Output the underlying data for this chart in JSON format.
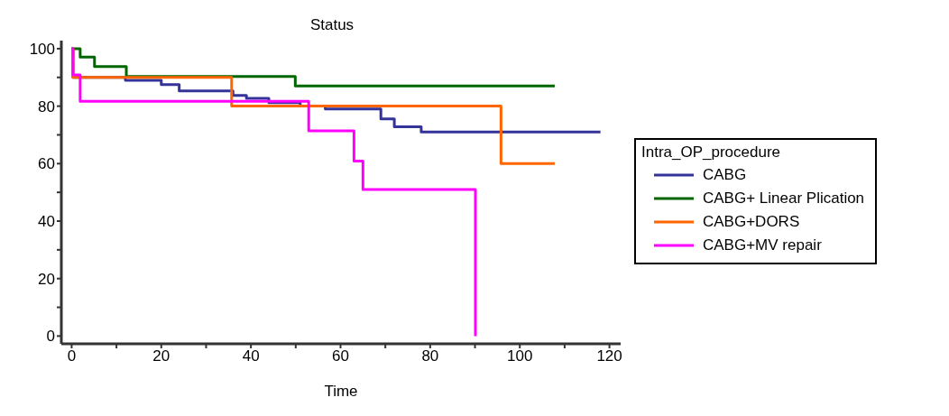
{
  "chart_data": {
    "type": "step",
    "title": "Status",
    "xlabel": "Time",
    "legend_title": "Intra_OP_procedure",
    "legend": "right",
    "grid": false,
    "xlim": [
      -2.3,
      122.5
    ],
    "xticks": [
      0,
      {
        "value": 10,
        "label": null
      },
      20,
      {
        "value": 30,
        "label": null
      },
      40,
      {
        "value": 50,
        "label": null
      },
      60,
      {
        "value": 70,
        "label": null
      },
      80,
      {
        "value": 90,
        "label": null
      },
      100,
      {
        "value": 110,
        "label": null
      },
      120
    ],
    "ylim": [
      -2.7,
      102.8
    ],
    "yticks": [
      0,
      {
        "value": 10,
        "label": null
      },
      20,
      {
        "value": 30,
        "label": null
      },
      40,
      {
        "value": 50,
        "label": null
      },
      60,
      {
        "value": 70,
        "label": null
      },
      80,
      {
        "value": 90,
        "label": null
      },
      100
    ],
    "series": [
      {
        "name": "CABG",
        "color": "#333399",
        "x": [
          0,
          0.3,
          12,
          20,
          24,
          36,
          39,
          44,
          51,
          56.6,
          69,
          72,
          78,
          118
        ],
        "values": [
          100,
          90,
          89,
          87.5,
          85.3,
          83.7,
          82.7,
          81.2,
          80,
          79,
          75.6,
          72.8,
          71,
          71
        ]
      },
      {
        "name": "CABG+ Linear Plication",
        "color": "#006600",
        "x": [
          0,
          1.9,
          5.1,
          12.2,
          49.9,
          107.8
        ],
        "values": [
          100,
          97.1,
          93.8,
          90.3,
          87,
          87
        ]
      },
      {
        "name": "CABG+DORS",
        "color": "#ff6600",
        "x": [
          0,
          0.3,
          35.7,
          95.8,
          107.8
        ],
        "values": [
          100,
          90,
          80,
          60,
          60
        ]
      },
      {
        "name": "CABG+MV repair",
        "color": "#ff00ff",
        "x": [
          0,
          0.3,
          1.9,
          52.9,
          63,
          65,
          90.1
        ],
        "values": [
          100,
          90.9,
          81.7,
          71.4,
          60.9,
          51,
          0
        ]
      }
    ]
  }
}
